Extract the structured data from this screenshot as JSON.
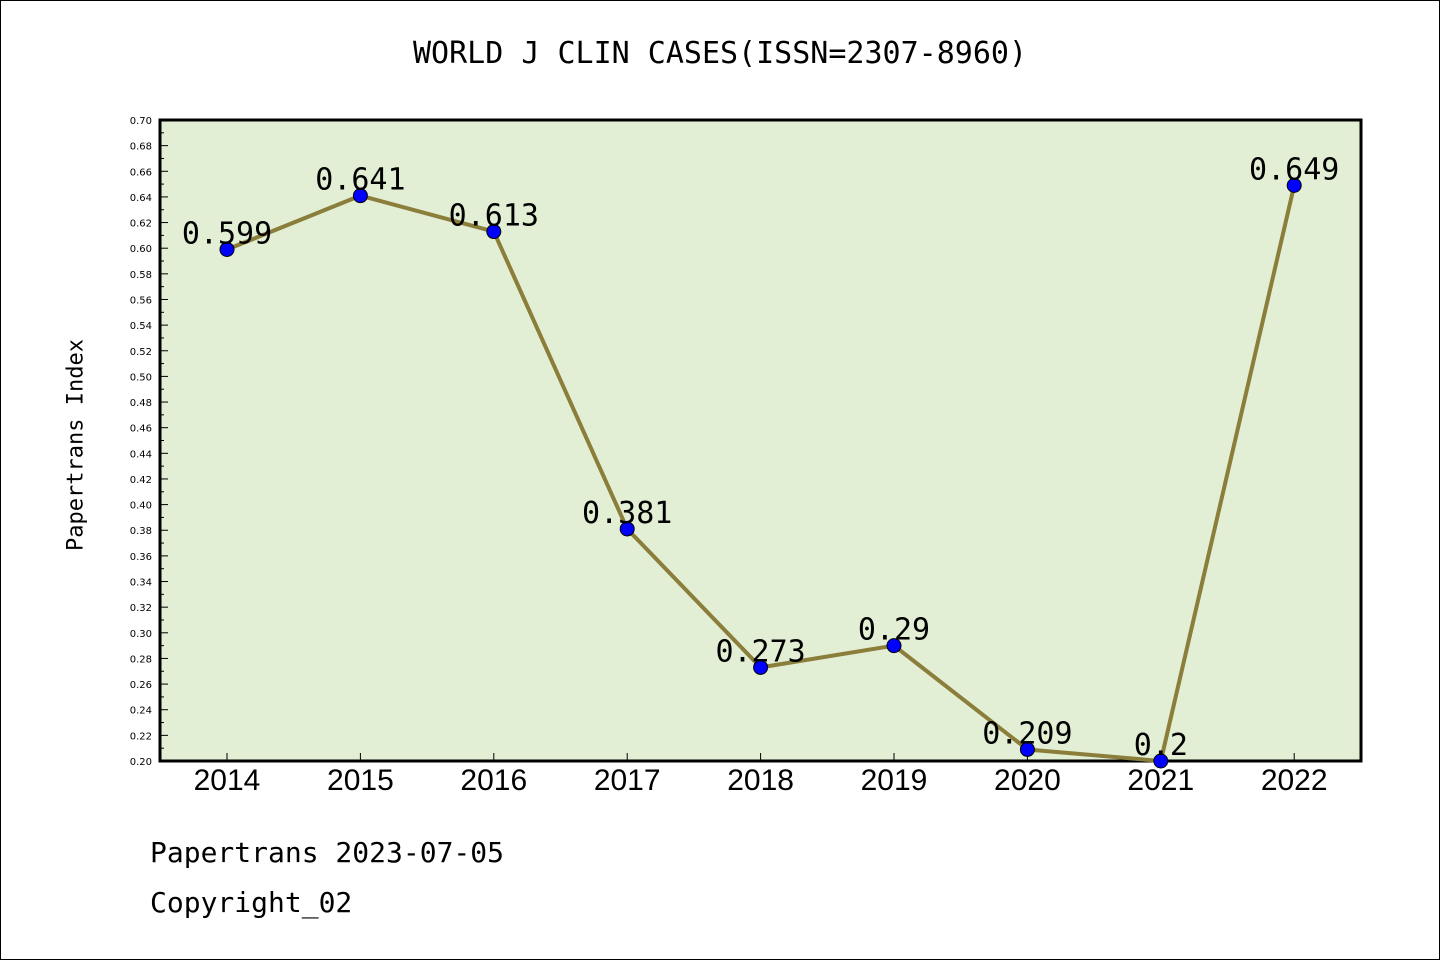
{
  "title": "WORLD J CLIN CASES(ISSN=2307-8960)",
  "footer": {
    "line1": "Papertrans 2023-07-05",
    "line2": "Copyright_02"
  },
  "colors": {
    "plot_background": "#e2efd5",
    "line": "#8b7d3a",
    "marker": "#0000ff"
  },
  "chart_data": {
    "type": "line",
    "title": "WORLD J CLIN CASES(ISSN=2307-8960)",
    "xlabel": "",
    "ylabel": "Papertrans Index",
    "categories": [
      "2014",
      "2015",
      "2016",
      "2017",
      "2018",
      "2019",
      "2020",
      "2021",
      "2022"
    ],
    "series": [
      {
        "values": [
          0.599,
          0.641,
          0.613,
          0.381,
          0.273,
          0.29,
          0.209,
          0.2,
          0.649
        ],
        "data_labels": [
          "0.599",
          "0.641",
          "0.613",
          "0.381",
          "0.273",
          "0.29",
          "0.209",
          "0.2",
          "0.649"
        ]
      }
    ],
    "ylim": [
      0.2,
      0.7
    ],
    "yticks": [
      "0.20",
      "0.22",
      "0.24",
      "0.26",
      "0.28",
      "0.30",
      "0.32",
      "0.34",
      "0.36",
      "0.38",
      "0.40",
      "0.42",
      "0.44",
      "0.46",
      "0.48",
      "0.50",
      "0.52",
      "0.54",
      "0.56",
      "0.58",
      "0.60",
      "0.62",
      "0.64",
      "0.66",
      "0.68",
      "0.70"
    ],
    "grid": false,
    "legend": "none"
  }
}
